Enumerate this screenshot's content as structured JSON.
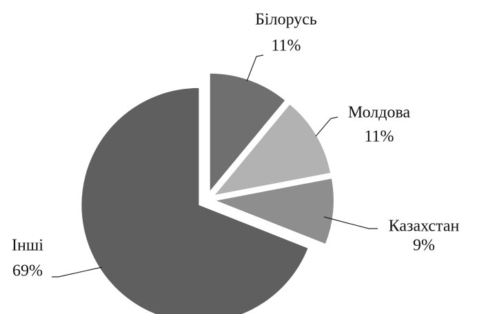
{
  "chart_data": {
    "type": "pie",
    "categories": [
      "Білорусь",
      "Молдова",
      "Казахстан",
      "Інші"
    ],
    "values": [
      11,
      11,
      9,
      69
    ],
    "value_labels": [
      "11%",
      "11%",
      "9%",
      "69%"
    ],
    "colors": [
      "#6f6f6f",
      "#b2b2b2",
      "#8e8e8e",
      "#5f5f5f"
    ]
  }
}
